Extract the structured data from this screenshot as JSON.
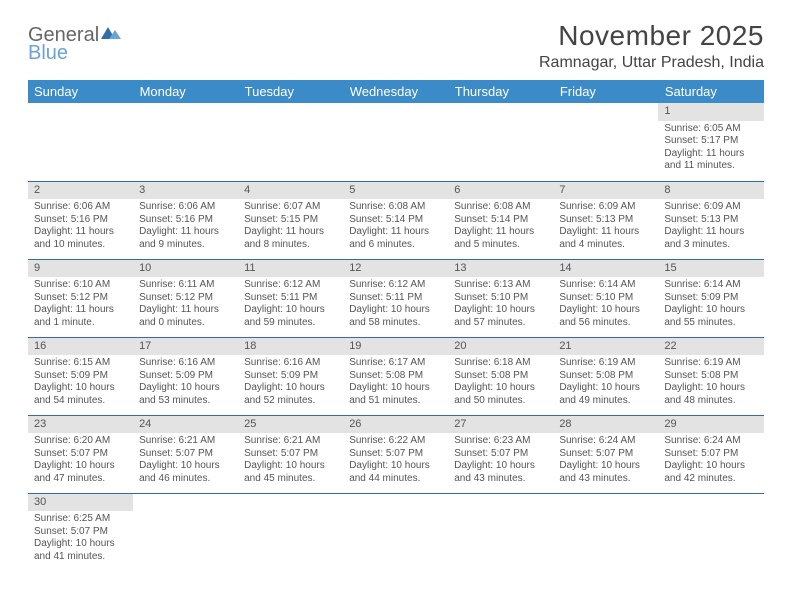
{
  "brand": {
    "general": "General",
    "blue": "Blue"
  },
  "title": "November 2025",
  "location": "Ramnagar, Uttar Pradesh, India",
  "colors": {
    "header_bg": "#3b8bc9",
    "header_text": "#ffffff",
    "rule": "#2f6fa8",
    "daynum_bg": "#e3e3e3",
    "text": "#555555"
  },
  "days_of_week": [
    "Sunday",
    "Monday",
    "Tuesday",
    "Wednesday",
    "Thursday",
    "Friday",
    "Saturday"
  ],
  "weeks": [
    [
      null,
      null,
      null,
      null,
      null,
      null,
      {
        "n": "1",
        "sr": "Sunrise: 6:05 AM",
        "ss": "Sunset: 5:17 PM",
        "dl": "Daylight: 11 hours and 11 minutes."
      }
    ],
    [
      {
        "n": "2",
        "sr": "Sunrise: 6:06 AM",
        "ss": "Sunset: 5:16 PM",
        "dl": "Daylight: 11 hours and 10 minutes."
      },
      {
        "n": "3",
        "sr": "Sunrise: 6:06 AM",
        "ss": "Sunset: 5:16 PM",
        "dl": "Daylight: 11 hours and 9 minutes."
      },
      {
        "n": "4",
        "sr": "Sunrise: 6:07 AM",
        "ss": "Sunset: 5:15 PM",
        "dl": "Daylight: 11 hours and 8 minutes."
      },
      {
        "n": "5",
        "sr": "Sunrise: 6:08 AM",
        "ss": "Sunset: 5:14 PM",
        "dl": "Daylight: 11 hours and 6 minutes."
      },
      {
        "n": "6",
        "sr": "Sunrise: 6:08 AM",
        "ss": "Sunset: 5:14 PM",
        "dl": "Daylight: 11 hours and 5 minutes."
      },
      {
        "n": "7",
        "sr": "Sunrise: 6:09 AM",
        "ss": "Sunset: 5:13 PM",
        "dl": "Daylight: 11 hours and 4 minutes."
      },
      {
        "n": "8",
        "sr": "Sunrise: 6:09 AM",
        "ss": "Sunset: 5:13 PM",
        "dl": "Daylight: 11 hours and 3 minutes."
      }
    ],
    [
      {
        "n": "9",
        "sr": "Sunrise: 6:10 AM",
        "ss": "Sunset: 5:12 PM",
        "dl": "Daylight: 11 hours and 1 minute."
      },
      {
        "n": "10",
        "sr": "Sunrise: 6:11 AM",
        "ss": "Sunset: 5:12 PM",
        "dl": "Daylight: 11 hours and 0 minutes."
      },
      {
        "n": "11",
        "sr": "Sunrise: 6:12 AM",
        "ss": "Sunset: 5:11 PM",
        "dl": "Daylight: 10 hours and 59 minutes."
      },
      {
        "n": "12",
        "sr": "Sunrise: 6:12 AM",
        "ss": "Sunset: 5:11 PM",
        "dl": "Daylight: 10 hours and 58 minutes."
      },
      {
        "n": "13",
        "sr": "Sunrise: 6:13 AM",
        "ss": "Sunset: 5:10 PM",
        "dl": "Daylight: 10 hours and 57 minutes."
      },
      {
        "n": "14",
        "sr": "Sunrise: 6:14 AM",
        "ss": "Sunset: 5:10 PM",
        "dl": "Daylight: 10 hours and 56 minutes."
      },
      {
        "n": "15",
        "sr": "Sunrise: 6:14 AM",
        "ss": "Sunset: 5:09 PM",
        "dl": "Daylight: 10 hours and 55 minutes."
      }
    ],
    [
      {
        "n": "16",
        "sr": "Sunrise: 6:15 AM",
        "ss": "Sunset: 5:09 PM",
        "dl": "Daylight: 10 hours and 54 minutes."
      },
      {
        "n": "17",
        "sr": "Sunrise: 6:16 AM",
        "ss": "Sunset: 5:09 PM",
        "dl": "Daylight: 10 hours and 53 minutes."
      },
      {
        "n": "18",
        "sr": "Sunrise: 6:16 AM",
        "ss": "Sunset: 5:09 PM",
        "dl": "Daylight: 10 hours and 52 minutes."
      },
      {
        "n": "19",
        "sr": "Sunrise: 6:17 AM",
        "ss": "Sunset: 5:08 PM",
        "dl": "Daylight: 10 hours and 51 minutes."
      },
      {
        "n": "20",
        "sr": "Sunrise: 6:18 AM",
        "ss": "Sunset: 5:08 PM",
        "dl": "Daylight: 10 hours and 50 minutes."
      },
      {
        "n": "21",
        "sr": "Sunrise: 6:19 AM",
        "ss": "Sunset: 5:08 PM",
        "dl": "Daylight: 10 hours and 49 minutes."
      },
      {
        "n": "22",
        "sr": "Sunrise: 6:19 AM",
        "ss": "Sunset: 5:08 PM",
        "dl": "Daylight: 10 hours and 48 minutes."
      }
    ],
    [
      {
        "n": "23",
        "sr": "Sunrise: 6:20 AM",
        "ss": "Sunset: 5:07 PM",
        "dl": "Daylight: 10 hours and 47 minutes."
      },
      {
        "n": "24",
        "sr": "Sunrise: 6:21 AM",
        "ss": "Sunset: 5:07 PM",
        "dl": "Daylight: 10 hours and 46 minutes."
      },
      {
        "n": "25",
        "sr": "Sunrise: 6:21 AM",
        "ss": "Sunset: 5:07 PM",
        "dl": "Daylight: 10 hours and 45 minutes."
      },
      {
        "n": "26",
        "sr": "Sunrise: 6:22 AM",
        "ss": "Sunset: 5:07 PM",
        "dl": "Daylight: 10 hours and 44 minutes."
      },
      {
        "n": "27",
        "sr": "Sunrise: 6:23 AM",
        "ss": "Sunset: 5:07 PM",
        "dl": "Daylight: 10 hours and 43 minutes."
      },
      {
        "n": "28",
        "sr": "Sunrise: 6:24 AM",
        "ss": "Sunset: 5:07 PM",
        "dl": "Daylight: 10 hours and 43 minutes."
      },
      {
        "n": "29",
        "sr": "Sunrise: 6:24 AM",
        "ss": "Sunset: 5:07 PM",
        "dl": "Daylight: 10 hours and 42 minutes."
      }
    ],
    [
      {
        "n": "30",
        "sr": "Sunrise: 6:25 AM",
        "ss": "Sunset: 5:07 PM",
        "dl": "Daylight: 10 hours and 41 minutes."
      },
      null,
      null,
      null,
      null,
      null,
      null
    ]
  ]
}
